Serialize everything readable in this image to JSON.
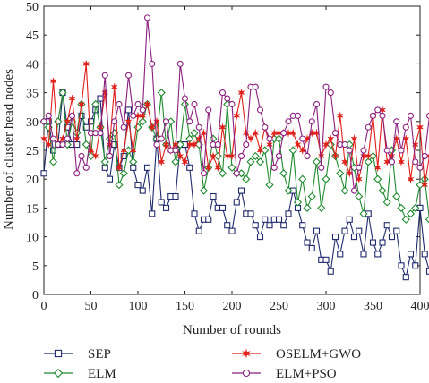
{
  "chart_data": {
    "type": "line",
    "title": "",
    "xlabel": "Number of rounds",
    "ylabel": "Number of cluster head nodes",
    "xlim": [
      0,
      400
    ],
    "ylim": [
      0,
      50
    ],
    "xticks": [
      "0",
      "50",
      "100",
      "150",
      "200",
      "250",
      "300",
      "350",
      "400"
    ],
    "yticks": [
      "0",
      "5",
      "10",
      "15",
      "20",
      "25",
      "30",
      "35",
      "40",
      "45",
      "50"
    ],
    "grid": false,
    "legend_position": "bottom",
    "series": [
      {
        "name": "SEP",
        "color": "#1f2a6b",
        "marker": "square",
        "values": [
          21,
          30,
          25,
          26,
          35,
          29,
          26,
          26,
          31,
          29,
          30,
          32,
          34,
          22,
          20,
          26,
          22,
          24,
          32,
          22,
          19,
          18,
          22,
          14,
          27,
          16,
          15,
          17,
          17,
          26,
          26,
          22,
          14,
          11,
          13,
          13,
          17,
          15,
          15,
          12,
          11,
          16,
          18,
          14,
          14,
          12,
          10,
          13,
          12,
          13,
          13,
          12,
          14,
          18,
          15,
          12,
          9,
          8,
          11,
          6,
          6,
          4,
          10,
          7,
          11,
          13,
          10,
          11,
          7,
          14,
          9,
          7,
          9,
          12,
          10,
          11,
          5,
          3,
          7,
          5,
          15,
          7,
          4,
          7
        ]
      },
      {
        "name": "ELM",
        "color": "#1e8a2e",
        "marker": "diamond",
        "values": [
          30,
          29,
          23,
          30,
          35,
          26,
          30,
          28,
          33,
          26,
          24,
          33,
          29,
          23,
          27,
          28,
          19,
          21,
          25,
          23,
          29,
          30,
          33,
          29,
          27,
          35,
          26,
          30,
          23,
          26,
          33,
          27,
          28,
          26,
          18,
          22,
          27,
          24,
          21,
          33,
          22,
          21,
          21,
          20,
          23,
          24,
          23,
          25,
          19,
          27,
          27,
          21,
          18,
          25,
          16,
          20,
          15,
          17,
          23,
          15,
          20,
          26,
          24,
          21,
          18,
          26,
          22,
          17,
          14,
          23,
          24,
          20,
          18,
          16,
          25,
          17,
          15,
          13,
          14,
          15,
          19,
          20,
          13,
          16
        ]
      },
      {
        "name": "OSELM+GWO",
        "color": "#e0201a",
        "marker": "star",
        "values": [
          27,
          26,
          37,
          26,
          27,
          30,
          34,
          27,
          33,
          40,
          25,
          24,
          29,
          35,
          26,
          36,
          22,
          25,
          30,
          25,
          31,
          31,
          33,
          29,
          30,
          23,
          26,
          25,
          26,
          24,
          23,
          26,
          26,
          27,
          28,
          22,
          24,
          22,
          29,
          24,
          24,
          31,
          35,
          28,
          27,
          28,
          25,
          29,
          26,
          28,
          28,
          28,
          28,
          28,
          26,
          25,
          27,
          28,
          28,
          24,
          26,
          27,
          24,
          31,
          23,
          21,
          27,
          20,
          24,
          24,
          31,
          22,
          32,
          23,
          24,
          27,
          23,
          27,
          20,
          26,
          29,
          19,
          24,
          12
        ]
      },
      {
        "name": "ELM+PSO",
        "color": "#8a1f7e",
        "marker": "circle",
        "values": [
          30,
          31,
          27,
          26,
          26,
          27,
          31,
          21,
          24,
          22,
          28,
          28,
          28,
          38,
          24,
          30,
          33,
          29,
          38,
          31,
          33,
          32,
          48,
          40,
          26,
          27,
          30,
          25,
          25,
          40,
          34,
          30,
          33,
          29,
          21,
          32,
          26,
          26,
          35,
          34,
          33,
          21,
          24,
          26,
          36,
          36,
          32,
          29,
          27,
          22,
          24,
          28,
          30,
          31,
          31,
          27,
          24,
          30,
          33,
          22,
          36,
          35,
          28,
          26,
          26,
          25,
          18,
          22,
          25,
          29,
          31,
          32,
          31,
          25,
          23,
          30,
          25,
          29,
          31,
          23,
          22,
          24,
          31,
          29
        ]
      }
    ],
    "x_step": 5,
    "x_start": 0
  }
}
